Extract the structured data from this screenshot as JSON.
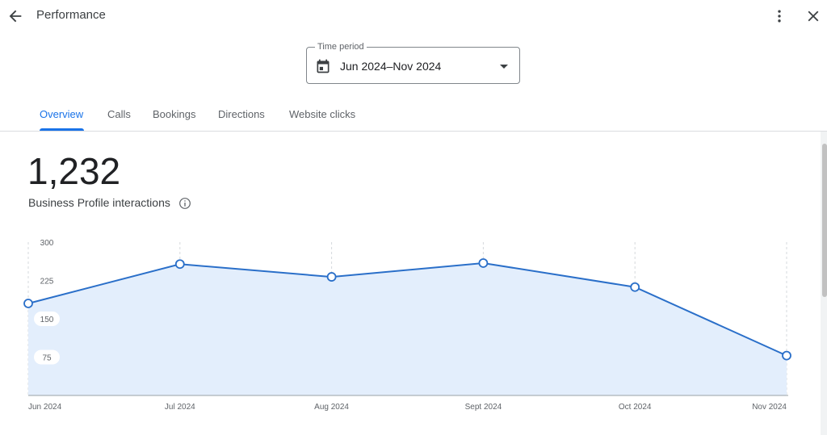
{
  "header": {
    "title": "Performance",
    "back_icon": "arrow-left-icon",
    "more_icon": "more-vert-icon",
    "close_icon": "close-icon"
  },
  "time_period": {
    "legend": "Time period",
    "value": "Jun 2024–Nov 2024",
    "icon": "calendar-icon"
  },
  "tabs": [
    {
      "label": "Overview",
      "active": true
    },
    {
      "label": "Calls",
      "active": false
    },
    {
      "label": "Bookings",
      "active": false
    },
    {
      "label": "Directions",
      "active": false
    },
    {
      "label": "Website clicks",
      "active": false
    }
  ],
  "summary": {
    "total": "1,232",
    "label": "Business Profile interactions",
    "info_icon": "info-icon"
  },
  "colors": {
    "accent": "#1a73e8",
    "line": "#2a6fc9",
    "area": "#e3eefc"
  },
  "chart_data": {
    "type": "area",
    "categories": [
      "Jun 2024",
      "Jul 2024",
      "Aug 2024",
      "Sept 2024",
      "Oct 2024",
      "Nov 2024"
    ],
    "series": [
      {
        "values": [
          180,
          257,
          232,
          259,
          212,
          78
        ]
      }
    ],
    "yticks": [
      "75",
      "150",
      "225",
      "300"
    ],
    "ylim": [
      0,
      300
    ],
    "grid": "vertical-dashed",
    "title": "",
    "xlabel": "",
    "ylabel": ""
  }
}
